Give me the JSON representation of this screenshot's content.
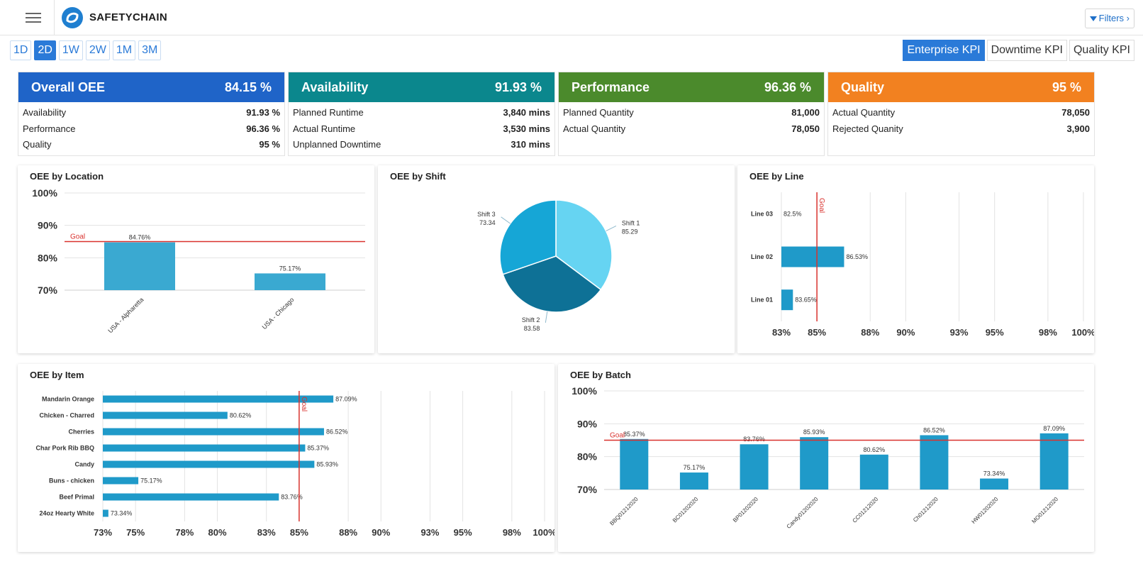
{
  "app": {
    "brand": "SAFETYCHAIN",
    "filters_label": "Filters ›"
  },
  "ranges": [
    "1D",
    "2D",
    "1W",
    "2W",
    "1M",
    "3M"
  ],
  "active_range": "2D",
  "kpi_tabs": [
    "Enterprise KPI",
    "Downtime KPI",
    "Quality KPI"
  ],
  "active_kpi": "Enterprise KPI",
  "colors": {
    "oee": "#1f64c8",
    "availability": "#0b878d",
    "performance": "#4b8a2c",
    "quality": "#f28120",
    "bar": "#1f9ac9",
    "goal": "#d9322e"
  },
  "cards": {
    "overall": {
      "title": "Overall OEE",
      "value": "84.15 %",
      "rows": [
        {
          "label": "Availability",
          "value": "91.93 %"
        },
        {
          "label": "Performance",
          "value": "96.36 %"
        },
        {
          "label": "Quality",
          "value": "95 %"
        }
      ]
    },
    "availability": {
      "title": "Availability",
      "value": "91.93 %",
      "rows": [
        {
          "label": "Planned Runtime",
          "value": "3,840 mins"
        },
        {
          "label": "Actual Runtime",
          "value": "3,530 mins"
        },
        {
          "label": "Unplanned Downtime",
          "value": "310 mins"
        }
      ]
    },
    "performance": {
      "title": "Performance",
      "value": "96.36 %",
      "rows": [
        {
          "label": "Planned Quantity",
          "value": "81,000"
        },
        {
          "label": "Actual Quantity",
          "value": "78,050"
        }
      ]
    },
    "quality": {
      "title": "Quality",
      "value": "95 %",
      "rows": [
        {
          "label": "Actual Quantity",
          "value": "78,050"
        },
        {
          "label": "Rejected Quanity",
          "value": "3,900"
        }
      ]
    }
  },
  "panels": {
    "location_title": "OEE by Location",
    "shift_title": "OEE by Shift",
    "line_title": "OEE by Line",
    "item_title": "OEE by Item",
    "batch_title": "OEE by Batch"
  },
  "chart_data": [
    {
      "id": "location",
      "type": "bar",
      "title": "OEE by Location",
      "categories": [
        "USA - Alpharetta",
        "USA - Chicago"
      ],
      "values": [
        84.76,
        75.17
      ],
      "value_labels": [
        "84.76%",
        "75.17%"
      ],
      "ylim": [
        70,
        100
      ],
      "yticks": [
        "70%",
        "80%",
        "90%",
        "100%"
      ],
      "ytick_values": [
        70,
        80,
        90,
        100
      ],
      "goal": 85,
      "goal_label": "Goal"
    },
    {
      "id": "shift",
      "type": "pie",
      "title": "OEE by Shift",
      "categories": [
        "Shift 1",
        "Shift 2",
        "Shift 3"
      ],
      "values": [
        85.29,
        83.58,
        73.34
      ],
      "value_labels": [
        "85.29",
        "83.58",
        "73.34"
      ]
    },
    {
      "id": "line",
      "type": "bar",
      "orientation": "horizontal",
      "title": "OEE by Line",
      "categories": [
        "Line 03",
        "Line 02",
        "Line 01"
      ],
      "values": [
        82.5,
        86.53,
        83.65
      ],
      "value_labels": [
        "82.5%",
        "86.53%",
        "83.65%"
      ],
      "xlim": [
        83,
        100
      ],
      "xticks": [
        "83%",
        "85%",
        "88%",
        "90%",
        "93%",
        "95%",
        "98%",
        "100%"
      ],
      "xtick_values": [
        83,
        85,
        88,
        90,
        93,
        95,
        98,
        100
      ],
      "goal": 85,
      "goal_label": "Goal"
    },
    {
      "id": "item",
      "type": "bar",
      "orientation": "horizontal",
      "title": "OEE by Item",
      "categories": [
        "Mandarin Orange",
        "Chicken - Charred",
        "Cherries",
        "Char Pork Rib BBQ",
        "Candy",
        "Buns - chicken",
        "Beef Primal",
        "24oz Hearty White"
      ],
      "values": [
        87.09,
        80.62,
        86.52,
        85.37,
        85.93,
        75.17,
        83.76,
        73.34
      ],
      "value_labels": [
        "87.09%",
        "80.62%",
        "86.52%",
        "85.37%",
        "85.93%",
        "75.17%",
        "83.76%",
        "73.34%"
      ],
      "xlim": [
        73,
        100
      ],
      "xticks": [
        "73%",
        "75%",
        "78%",
        "80%",
        "83%",
        "85%",
        "88%",
        "90%",
        "93%",
        "95%",
        "98%",
        "100%"
      ],
      "xtick_values": [
        73,
        75,
        78,
        80,
        83,
        85,
        88,
        90,
        93,
        95,
        98,
        100
      ],
      "goal": 85,
      "goal_label": "Goal"
    },
    {
      "id": "batch",
      "type": "bar",
      "title": "OEE by Batch",
      "categories": [
        "BBQ01212020",
        "BC01202020",
        "BP01202020",
        "Candy01202020",
        "CC01212020",
        "Ch01212020",
        "HW01202020",
        "MO01212020"
      ],
      "values": [
        85.37,
        75.17,
        83.76,
        85.93,
        80.62,
        86.52,
        73.34,
        87.09
      ],
      "value_labels": [
        "85.37%",
        "75.17%",
        "83.76%",
        "85.93%",
        "80.62%",
        "86.52%",
        "73.34%",
        "87.09%"
      ],
      "ylim": [
        70,
        100
      ],
      "yticks": [
        "70%",
        "80%",
        "90%",
        "100%"
      ],
      "ytick_values": [
        70,
        80,
        90,
        100
      ],
      "goal": 85,
      "goal_label": "Goal"
    }
  ]
}
